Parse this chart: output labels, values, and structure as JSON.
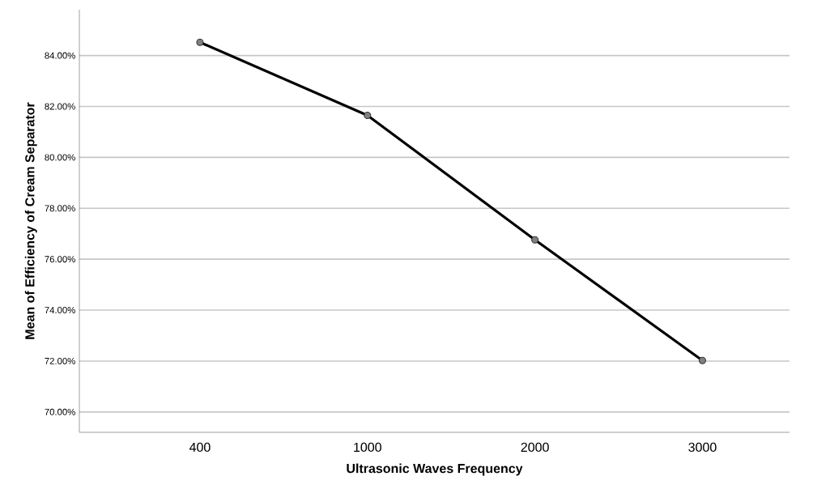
{
  "chart_data": {
    "type": "line",
    "xlabel": "Ultrasonic Waves Frequency",
    "ylabel": "Mean of Efficiency of Cream Separator",
    "categories": [
      "400",
      "1000",
      "2000",
      "3000"
    ],
    "series": [
      {
        "color": "#000000",
        "values": [
          84.52,
          81.65,
          76.76,
          72.02
        ]
      }
    ],
    "ylim": [
      69.2,
      85.8
    ],
    "yticks": [
      {
        "value": 70,
        "label": "70.00%"
      },
      {
        "value": 72,
        "label": "72.00%"
      },
      {
        "value": 74,
        "label": "74.00%"
      },
      {
        "value": 76,
        "label": "76.00%"
      },
      {
        "value": 78,
        "label": "78.00%"
      },
      {
        "value": 80,
        "label": "80.00%"
      },
      {
        "value": 82,
        "label": "82.00%"
      },
      {
        "value": 84,
        "label": "84.00%"
      }
    ],
    "grid": "y",
    "marker": "circle",
    "line_style": "solid"
  }
}
